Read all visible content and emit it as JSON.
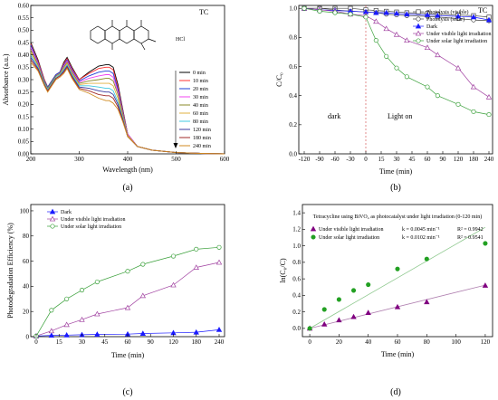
{
  "chart_data": [
    {
      "panel": "a",
      "type": "line",
      "panel_label": "(a)",
      "xlabel": "Wavelength (nm)",
      "ylabel": "Absorbance (a.u.)",
      "xlim": [
        200,
        600
      ],
      "ylim": [
        0,
        0.6
      ],
      "xticks": [
        200,
        300,
        400,
        500,
        600
      ],
      "yticks": [
        0.0,
        0.05,
        0.1,
        0.15,
        0.2,
        0.25,
        0.3,
        0.35,
        0.4,
        0.45,
        0.5,
        0.55,
        0.6
      ],
      "inset_label": "TC",
      "molecule_label": "HCl",
      "legend": [
        "0 min",
        "10 min",
        "20 min",
        "30 min",
        "40 min",
        "60 min",
        "80 min",
        "120 min",
        "180 min",
        "240 min"
      ],
      "colors": [
        "#000000",
        "#ff3333",
        "#1f3fd6",
        "#f044f0",
        "#8a8a2a",
        "#e0b040",
        "#40c8e0",
        "#3a3aa0",
        "#a02a2a",
        "#d08a20"
      ],
      "series": [
        {
          "name": "0 min",
          "x": [
            200,
            215,
            228,
            235,
            245,
            252,
            260,
            268,
            275,
            285,
            300,
            320,
            340,
            355,
            362,
            370,
            380,
            390,
            400,
            420,
            450,
            500,
            550,
            600
          ],
          "y": [
            0.45,
            0.38,
            0.3,
            0.27,
            0.3,
            0.32,
            0.33,
            0.37,
            0.39,
            0.35,
            0.3,
            0.33,
            0.355,
            0.36,
            0.36,
            0.35,
            0.28,
            0.18,
            0.08,
            0.03,
            0.015,
            0.005,
            0.002,
            0.0
          ]
        },
        {
          "name": "10 min",
          "x": [
            200,
            215,
            228,
            235,
            245,
            252,
            260,
            268,
            275,
            285,
            300,
            320,
            340,
            355,
            362,
            370,
            380,
            390,
            400,
            420,
            450,
            500,
            550,
            600
          ],
          "y": [
            0.445,
            0.375,
            0.3,
            0.27,
            0.3,
            0.32,
            0.33,
            0.365,
            0.385,
            0.345,
            0.3,
            0.325,
            0.345,
            0.35,
            0.35,
            0.34,
            0.27,
            0.175,
            0.08,
            0.03,
            0.015,
            0.005,
            0.002,
            0.0
          ]
        },
        {
          "name": "20 min",
          "x": [
            200,
            215,
            228,
            235,
            245,
            252,
            260,
            268,
            275,
            285,
            300,
            320,
            340,
            355,
            362,
            370,
            380,
            390,
            400,
            420,
            450,
            500,
            550,
            600
          ],
          "y": [
            0.44,
            0.37,
            0.295,
            0.27,
            0.3,
            0.32,
            0.33,
            0.36,
            0.38,
            0.34,
            0.295,
            0.315,
            0.33,
            0.335,
            0.335,
            0.325,
            0.26,
            0.17,
            0.08,
            0.03,
            0.015,
            0.005,
            0.002,
            0.0
          ]
        },
        {
          "name": "30 min",
          "x": [
            200,
            215,
            228,
            235,
            245,
            252,
            260,
            268,
            275,
            285,
            300,
            320,
            340,
            355,
            362,
            370,
            380,
            390,
            400,
            420,
            450,
            500,
            550,
            600
          ],
          "y": [
            0.43,
            0.365,
            0.29,
            0.265,
            0.295,
            0.315,
            0.325,
            0.355,
            0.375,
            0.335,
            0.29,
            0.305,
            0.315,
            0.32,
            0.32,
            0.31,
            0.25,
            0.165,
            0.08,
            0.03,
            0.015,
            0.005,
            0.002,
            0.0
          ]
        },
        {
          "name": "40 min",
          "x": [
            200,
            215,
            228,
            235,
            245,
            252,
            260,
            268,
            275,
            285,
            300,
            320,
            340,
            355,
            362,
            370,
            380,
            390,
            400,
            420,
            450,
            500,
            550,
            600
          ],
          "y": [
            0.42,
            0.36,
            0.29,
            0.265,
            0.295,
            0.315,
            0.325,
            0.35,
            0.37,
            0.33,
            0.285,
            0.295,
            0.3,
            0.305,
            0.305,
            0.295,
            0.24,
            0.16,
            0.075,
            0.03,
            0.015,
            0.005,
            0.002,
            0.0
          ]
        },
        {
          "name": "60 min",
          "x": [
            200,
            215,
            228,
            235,
            245,
            252,
            260,
            268,
            275,
            285,
            300,
            320,
            340,
            355,
            362,
            370,
            380,
            390,
            400,
            420,
            450,
            500,
            550,
            600
          ],
          "y": [
            0.41,
            0.355,
            0.285,
            0.26,
            0.29,
            0.31,
            0.32,
            0.345,
            0.365,
            0.325,
            0.28,
            0.285,
            0.285,
            0.285,
            0.285,
            0.275,
            0.225,
            0.15,
            0.075,
            0.03,
            0.015,
            0.005,
            0.002,
            0.0
          ]
        },
        {
          "name": "80 min",
          "x": [
            200,
            215,
            228,
            235,
            245,
            252,
            260,
            268,
            275,
            285,
            300,
            320,
            340,
            355,
            362,
            370,
            380,
            390,
            400,
            420,
            450,
            500,
            550,
            600
          ],
          "y": [
            0.4,
            0.35,
            0.285,
            0.26,
            0.29,
            0.31,
            0.32,
            0.34,
            0.36,
            0.32,
            0.275,
            0.275,
            0.27,
            0.265,
            0.265,
            0.255,
            0.21,
            0.145,
            0.07,
            0.03,
            0.015,
            0.005,
            0.002,
            0.0
          ]
        },
        {
          "name": "120 min",
          "x": [
            200,
            215,
            228,
            235,
            245,
            252,
            260,
            268,
            275,
            285,
            300,
            320,
            340,
            355,
            362,
            370,
            380,
            390,
            400,
            420,
            450,
            500,
            550,
            600
          ],
          "y": [
            0.39,
            0.345,
            0.28,
            0.255,
            0.285,
            0.305,
            0.315,
            0.335,
            0.355,
            0.315,
            0.27,
            0.265,
            0.255,
            0.25,
            0.25,
            0.24,
            0.2,
            0.14,
            0.07,
            0.03,
            0.015,
            0.005,
            0.002,
            0.0
          ]
        },
        {
          "name": "180 min",
          "x": [
            200,
            215,
            228,
            235,
            245,
            252,
            260,
            268,
            275,
            285,
            300,
            320,
            340,
            355,
            362,
            370,
            380,
            390,
            400,
            420,
            450,
            500,
            550,
            600
          ],
          "y": [
            0.38,
            0.34,
            0.28,
            0.255,
            0.285,
            0.305,
            0.315,
            0.33,
            0.35,
            0.31,
            0.265,
            0.255,
            0.24,
            0.235,
            0.235,
            0.225,
            0.19,
            0.135,
            0.07,
            0.03,
            0.015,
            0.005,
            0.002,
            0.0
          ]
        },
        {
          "name": "240 min",
          "x": [
            200,
            215,
            228,
            235,
            245,
            252,
            260,
            268,
            275,
            285,
            300,
            320,
            340,
            355,
            362,
            370,
            380,
            390,
            400,
            420,
            450,
            500,
            550,
            600
          ],
          "y": [
            0.37,
            0.335,
            0.275,
            0.25,
            0.28,
            0.3,
            0.31,
            0.325,
            0.345,
            0.305,
            0.26,
            0.245,
            0.225,
            0.215,
            0.215,
            0.205,
            0.18,
            0.13,
            0.07,
            0.03,
            0.015,
            0.005,
            0.002,
            0.0
          ]
        }
      ]
    },
    {
      "panel": "b",
      "type": "line",
      "panel_label": "(b)",
      "xlabel": "Time (min)",
      "ylabel": "C/C₀",
      "xlim": [
        -120,
        240
      ],
      "ylim": [
        0.0,
        1.0
      ],
      "xticks": [
        -120,
        -90,
        -60,
        -30,
        0,
        15,
        30,
        45,
        60,
        90,
        120,
        180,
        240
      ],
      "yticks": [
        0.0,
        0.2,
        0.4,
        0.6,
        0.8,
        1.0
      ],
      "inset_label": "TC",
      "annotations": [
        "dark",
        "Light on"
      ],
      "series": [
        {
          "name": "Photolysis (visible)",
          "marker": "square-open",
          "color": "#444444",
          "x": [
            -120,
            -90,
            -60,
            -30,
            0,
            10,
            20,
            30,
            40,
            60,
            80,
            120,
            180,
            240
          ],
          "y": [
            1.0,
            1.0,
            1.0,
            1.0,
            0.99,
            0.985,
            0.98,
            0.975,
            0.97,
            0.965,
            0.96,
            0.955,
            0.95,
            0.94
          ]
        },
        {
          "name": "Photolysis (solar)",
          "marker": "circle-open",
          "color": "#444444",
          "x": [
            -120,
            -90,
            -60,
            -30,
            0,
            10,
            20,
            30,
            40,
            60,
            80,
            120,
            180,
            240
          ],
          "y": [
            1.0,
            1.0,
            0.99,
            0.98,
            0.975,
            0.97,
            0.96,
            0.955,
            0.95,
            0.945,
            0.94,
            0.93,
            0.92,
            0.915
          ]
        },
        {
          "name": "Dark",
          "marker": "triangle-filled",
          "color": "#1a1aff",
          "x": [
            -120,
            -90,
            -60,
            -30,
            0,
            10,
            20,
            30,
            40,
            60,
            80,
            120,
            180,
            240
          ],
          "y": [
            1.0,
            0.99,
            0.985,
            0.98,
            0.975,
            0.97,
            0.97,
            0.965,
            0.96,
            0.955,
            0.95,
            0.945,
            0.94,
            0.92
          ]
        },
        {
          "name": "Under visible light irradiation",
          "marker": "triangle-open",
          "color": "#a040a0",
          "x": [
            -120,
            -90,
            -60,
            -30,
            0,
            10,
            20,
            30,
            40,
            60,
            80,
            120,
            180,
            240
          ],
          "y": [
            1.0,
            0.99,
            0.98,
            0.96,
            0.95,
            0.91,
            0.86,
            0.82,
            0.78,
            0.73,
            0.68,
            0.59,
            0.46,
            0.39
          ]
        },
        {
          "name": "Under solar light irradiation",
          "marker": "circle-open",
          "color": "#3aa03a",
          "x": [
            -120,
            -90,
            -60,
            -30,
            0,
            10,
            20,
            30,
            40,
            60,
            80,
            120,
            180,
            240
          ],
          "y": [
            1.0,
            0.98,
            0.97,
            0.96,
            0.94,
            0.78,
            0.67,
            0.59,
            0.53,
            0.46,
            0.4,
            0.34,
            0.29,
            0.27
          ]
        }
      ]
    },
    {
      "panel": "c",
      "type": "line",
      "panel_label": "(c)",
      "xlabel": "Time (min)",
      "ylabel": "Photodegradation Efficiency (%)",
      "xlim": [
        0,
        240
      ],
      "ylim": [
        0,
        100
      ],
      "xticks": [
        0,
        15,
        30,
        45,
        60,
        90,
        120,
        180,
        240
      ],
      "yticks": [
        0,
        20,
        40,
        60,
        80,
        100
      ],
      "series": [
        {
          "name": "Dark",
          "marker": "triangle-filled",
          "color": "#1a1aff",
          "x": [
            0,
            10,
            20,
            30,
            40,
            60,
            80,
            120,
            180,
            240
          ],
          "y": [
            0.5,
            1.0,
            1.2,
            1.5,
            1.8,
            2.0,
            2.5,
            3.0,
            3.5,
            5.5
          ]
        },
        {
          "name": "Under visible light irradiation",
          "marker": "triangle-open",
          "color": "#a040a0",
          "x": [
            0,
            10,
            20,
            30,
            40,
            60,
            80,
            120,
            180,
            240
          ],
          "y": [
            0.5,
            4.5,
            9.5,
            13.5,
            18.0,
            23.0,
            32.5,
            41.0,
            55.0,
            59.0
          ]
        },
        {
          "name": "Under solar light irradiation",
          "marker": "circle-open",
          "color": "#3aa03a",
          "x": [
            0,
            10,
            20,
            30,
            40,
            60,
            80,
            120,
            180,
            240
          ],
          "y": [
            0.5,
            21.0,
            30.0,
            37.0,
            43.5,
            52.0,
            57.5,
            64.0,
            69.5,
            71.0
          ]
        }
      ]
    },
    {
      "panel": "d",
      "type": "scatter",
      "panel_label": "(d)",
      "title": "Tetracycline using BiVO₄ as photocatalyst under light irradiation (0-120 min)",
      "xlabel": "Time (min)",
      "ylabel": "ln(C₀/C)",
      "xlim": [
        -5,
        125
      ],
      "ylim": [
        -0.1,
        1.5
      ],
      "xticks": [
        0,
        20,
        40,
        60,
        80,
        100,
        120
      ],
      "yticks": [
        0.0,
        0.2,
        0.4,
        0.6,
        0.8,
        1.0,
        1.2,
        1.4
      ],
      "series": [
        {
          "name": "Under visible light irradiation",
          "marker": "triangle-filled",
          "color": "#800080",
          "k": "k = 0.0045 min⁻¹",
          "r2": "R² = 0.9942",
          "slope": 0.0045,
          "x": [
            0,
            10,
            20,
            30,
            40,
            60,
            80,
            120
          ],
          "y": [
            0.0,
            0.05,
            0.1,
            0.14,
            0.19,
            0.26,
            0.32,
            0.52
          ]
        },
        {
          "name": "Under solar light irradiation",
          "marker": "circle-filled",
          "color": "#22a022",
          "k": "k = 0.0102 min⁻¹",
          "r2": "R² = 0.9541",
          "slope": 0.0102,
          "x": [
            0,
            10,
            20,
            30,
            40,
            60,
            80,
            120
          ],
          "y": [
            0.0,
            0.23,
            0.35,
            0.46,
            0.53,
            0.72,
            0.84,
            1.03
          ]
        }
      ]
    }
  ]
}
